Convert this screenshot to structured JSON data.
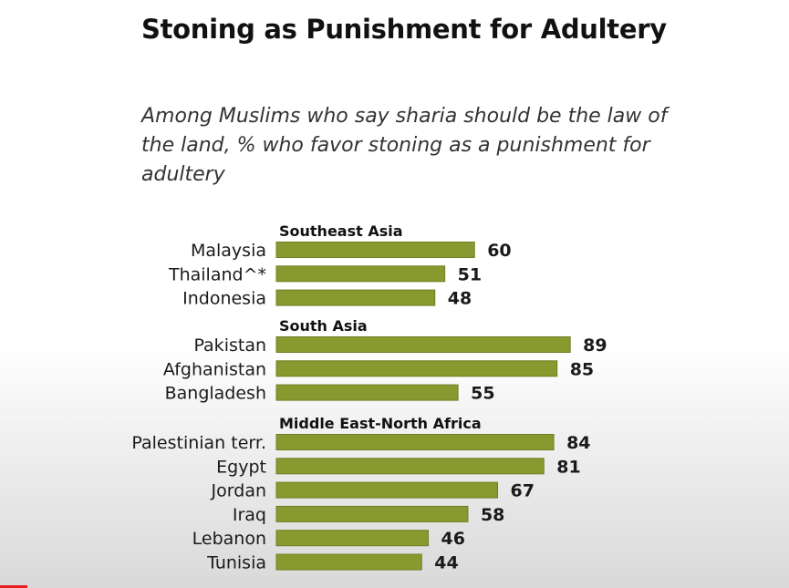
{
  "colors": {
    "bar": "#889a2f",
    "bar_edge": "#6f7e22",
    "accent": "#e61e1e"
  },
  "chart_data": {
    "type": "bar",
    "orientation": "horizontal",
    "title": "Stoning as Punishment for Adultery",
    "subtitle": "Among Muslims who say sharia should be the law of the land, % who favor stoning as a punishment for adultery",
    "xlim": [
      0,
      100
    ],
    "grid": false,
    "groups": [
      {
        "name": "Southeast Asia",
        "categories": [
          "Malaysia",
          "Thailand^*",
          "Indonesia"
        ],
        "values": [
          60,
          51,
          48
        ]
      },
      {
        "name": "South Asia",
        "categories": [
          "Pakistan",
          "Afghanistan",
          "Bangladesh"
        ],
        "values": [
          89,
          85,
          55
        ]
      },
      {
        "name": "Middle East-North Africa",
        "categories": [
          "Palestinian terr.",
          "Egypt",
          "Jordan",
          "Iraq",
          "Lebanon",
          "Tunisia"
        ],
        "values": [
          84,
          81,
          67,
          58,
          46,
          44
        ]
      }
    ]
  }
}
